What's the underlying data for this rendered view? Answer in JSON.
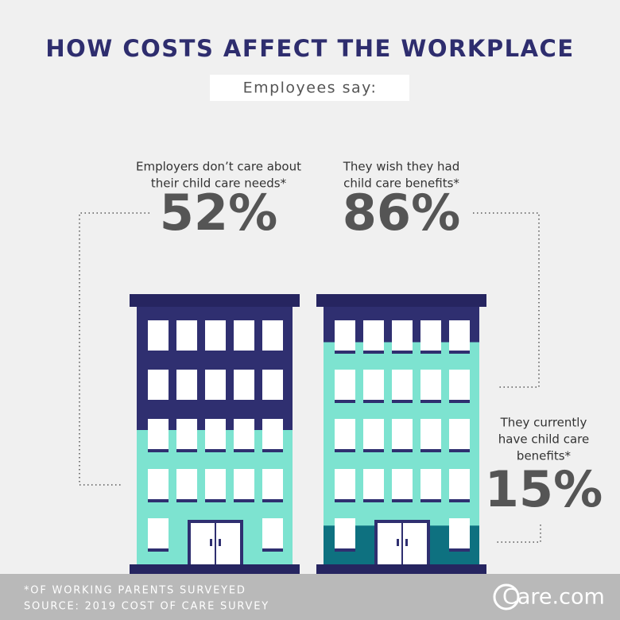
{
  "header": {
    "title": "HOW COSTS AFFECT THE WORKPLACE",
    "subtitle": "Employees say:"
  },
  "stats": [
    {
      "lines": [
        "Employers don’t care about",
        "their child care needs*"
      ],
      "value": 52,
      "label": "52%"
    },
    {
      "lines": [
        "They wish they had",
        "child care benefits*"
      ],
      "value": 86,
      "label": "86%"
    },
    {
      "lines": [
        "They currently",
        "have child care",
        "benefits*"
      ],
      "value": 15,
      "label": "15%"
    }
  ],
  "footer": {
    "note": "*OF WORKING PARENTS SURVEYED",
    "source": "SOURCE: 2019 COST OF CARE SURVEY",
    "logo": "Care.com"
  }
}
